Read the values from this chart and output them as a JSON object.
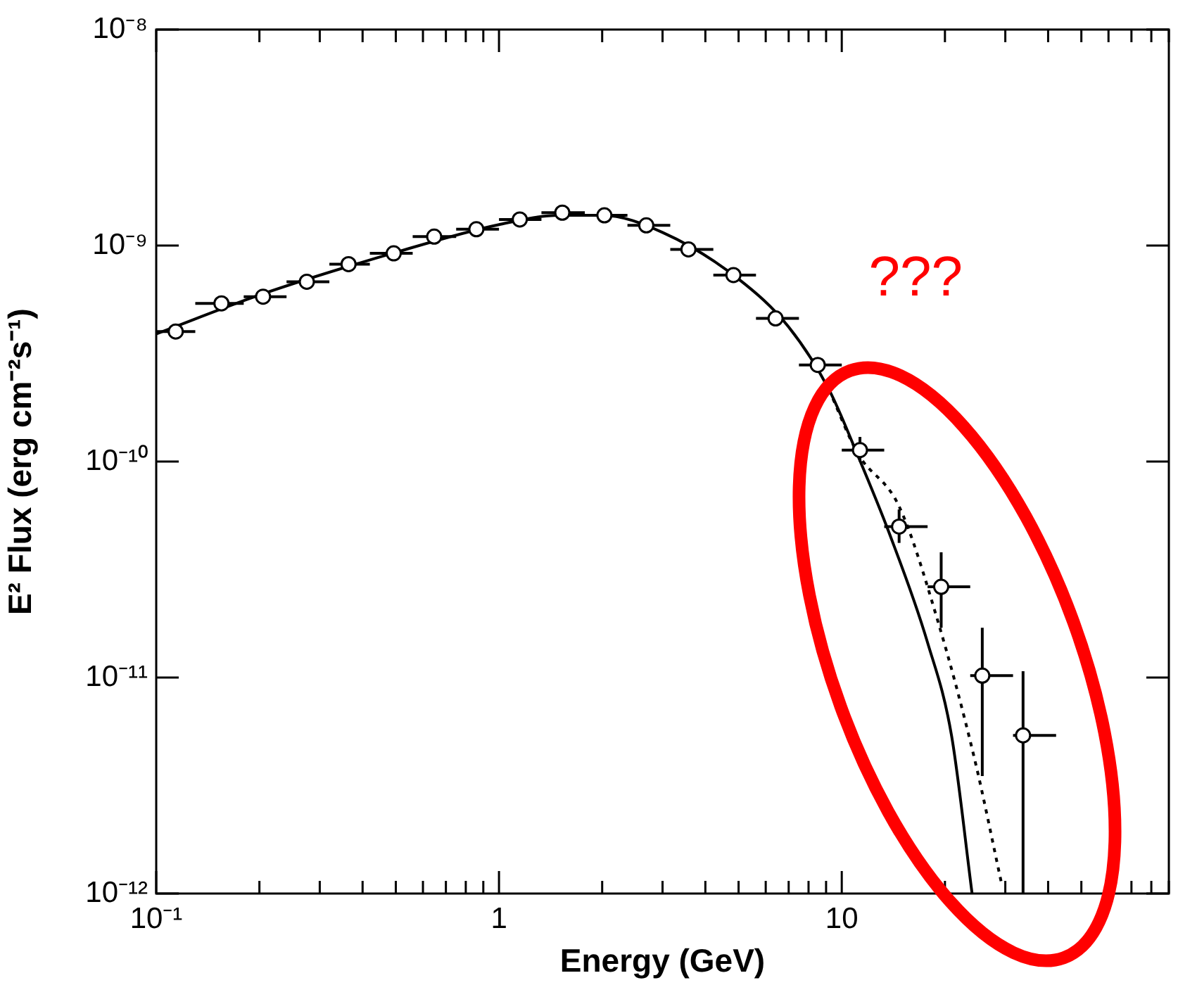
{
  "chart_data": {
    "type": "scatter",
    "xlabel": "Energy (GeV)",
    "ylabel": "E² Flux (erg cm⁻²s⁻¹)",
    "log": "xy",
    "grid": false,
    "legend": false,
    "annotations": [
      "???"
    ],
    "xlim": [
      0.1,
      90
    ],
    "ylim": [
      1e-12,
      1e-08
    ],
    "xticks": [
      {
        "value": 0.1,
        "label": "10⁻¹"
      },
      {
        "value": 0.2,
        "label": null
      },
      {
        "value": 0.3,
        "label": null
      },
      {
        "value": 0.4,
        "label": null
      },
      {
        "value": 0.5,
        "label": null
      },
      {
        "value": 0.6,
        "label": null
      },
      {
        "value": 0.7,
        "label": null
      },
      {
        "value": 0.8,
        "label": null
      },
      {
        "value": 0.9,
        "label": null
      },
      {
        "value": 1,
        "label": "1"
      },
      {
        "value": 2,
        "label": null
      },
      {
        "value": 3,
        "label": null
      },
      {
        "value": 4,
        "label": null
      },
      {
        "value": 5,
        "label": null
      },
      {
        "value": 6,
        "label": null
      },
      {
        "value": 7,
        "label": null
      },
      {
        "value": 8,
        "label": null
      },
      {
        "value": 9,
        "label": null
      },
      {
        "value": 10,
        "label": "10"
      },
      {
        "value": 20,
        "label": null
      },
      {
        "value": 30,
        "label": null
      },
      {
        "value": 40,
        "label": null
      },
      {
        "value": 50,
        "label": null
      },
      {
        "value": 60,
        "label": null
      },
      {
        "value": 70,
        "label": null
      },
      {
        "value": 80,
        "label": null
      },
      {
        "value": 90,
        "label": null
      }
    ],
    "yticks": [
      {
        "value": 1e-12,
        "label": "10⁻¹²"
      },
      {
        "value": 1e-11,
        "label": "10⁻¹¹"
      },
      {
        "value": 1e-10,
        "label": "10⁻¹⁰"
      },
      {
        "value": 1e-09,
        "label": "10⁻⁹"
      },
      {
        "value": 1e-08,
        "label": "10⁻⁸"
      }
    ],
    "series": [
      {
        "type": "line",
        "color": "#000000",
        "line_style": "solid",
        "x": [
          0.1,
          0.2,
          0.5,
          1,
          1.5,
          2,
          3,
          5,
          7,
          9.18,
          11.1,
          13.8,
          17.8,
          20.9,
          24.0
        ],
        "values": [
          3.9e-10,
          5.9e-10,
          9.3e-10,
          1.25e-09,
          1.38e-09,
          1.38e-09,
          1.15e-09,
          7e-10,
          4.2e-10,
          2.15e-10,
          1.08e-10,
          4.6e-11,
          1.45e-11,
          5.4e-12,
          1e-12
        ]
      },
      {
        "type": "line",
        "color": "#000000",
        "line_style": "dotted",
        "x": [
          9.18,
          11.1,
          14.7,
          19.0,
          24.4,
          29.3
        ],
        "values": [
          2.15e-10,
          1.1e-10,
          6.2e-11,
          1.86e-11,
          4.2e-12,
          1.1e-12
        ]
      },
      {
        "marker": "circle",
        "color": "#000000",
        "x": [
          0.114,
          0.155,
          0.205,
          0.275,
          0.364,
          0.493,
          0.647,
          0.859,
          1.15,
          1.53,
          2.03,
          2.69,
          3.57,
          4.83,
          6.41,
          8.51,
          11.3,
          14.7,
          19.5,
          25.7,
          33.8
        ],
        "values": [
          4e-10,
          5.4e-10,
          5.8e-10,
          6.8e-10,
          8.2e-10,
          9.2e-10,
          1.1e-09,
          1.19e-09,
          1.32e-09,
          1.42e-09,
          1.38e-09,
          1.24e-09,
          9.6e-10,
          7.3e-10,
          4.6e-10,
          2.8e-10,
          1.13e-10,
          5e-11,
          2.63e-11,
          1.02e-11,
          5.4e-12
        ],
        "errors": [
          null,
          null,
          null,
          null,
          null,
          null,
          null,
          null,
          null,
          null,
          null,
          null,
          null,
          null,
          null,
          null,
          [
            1e-10,
            1.3e-10
          ],
          [
            4.2e-11,
            6e-11
          ],
          [
            1.7e-11,
            3.8e-11
          ],
          [
            3.5e-12,
            1.7e-11
          ],
          [
            1e-12,
            1.07e-11
          ]
        ],
        "xerrors": [
          [
            0.1,
            0.13
          ],
          [
            0.13,
            0.18
          ],
          [
            0.18,
            0.24
          ],
          [
            0.24,
            0.32
          ],
          [
            0.32,
            0.42
          ],
          [
            0.42,
            0.56
          ],
          [
            0.56,
            0.75
          ],
          [
            0.75,
            1.0
          ],
          [
            1.0,
            1.33
          ],
          [
            1.33,
            1.78
          ],
          [
            1.78,
            2.37
          ],
          [
            2.37,
            3.16
          ],
          [
            3.16,
            4.22
          ],
          [
            4.22,
            5.62
          ],
          [
            5.62,
            7.5
          ],
          [
            7.5,
            10
          ],
          [
            10,
            13.3
          ],
          [
            13.3,
            17.8
          ],
          [
            17.8,
            23.7
          ],
          [
            23.7,
            31.6
          ],
          [
            31.6,
            42.2
          ]
        ]
      }
    ]
  }
}
